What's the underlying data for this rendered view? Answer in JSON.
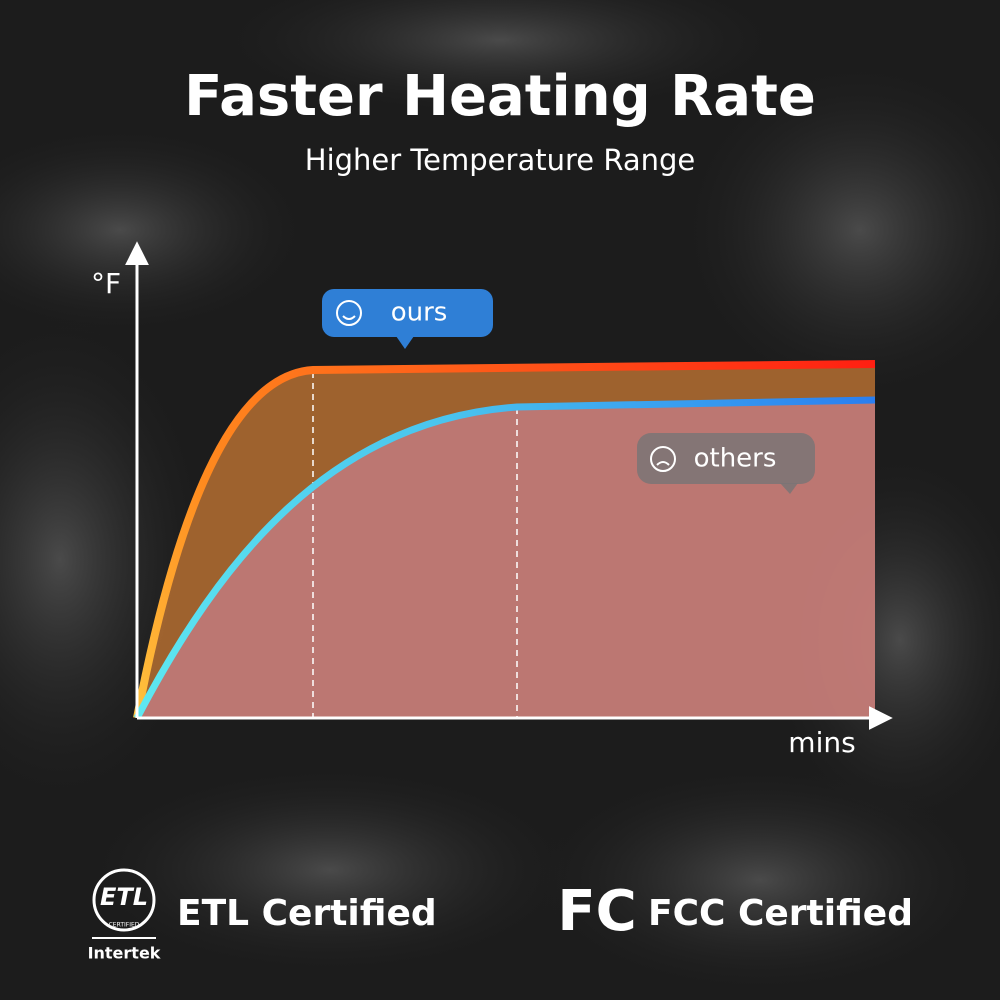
{
  "header": {
    "title": "Faster Heating Rate",
    "subtitle": "Higher Temperature Range"
  },
  "chart": {
    "y_axis_label": "°F",
    "x_axis_label": "mins",
    "ours_label": "ours",
    "others_label": "others"
  },
  "certifications": [
    {
      "logo_text": "ETL",
      "logo_subtext": "CERTIFIED",
      "brand": "Intertek",
      "label": "ETL Certified"
    },
    {
      "logo_text": "FC",
      "label": "FCC Certified"
    }
  ]
}
